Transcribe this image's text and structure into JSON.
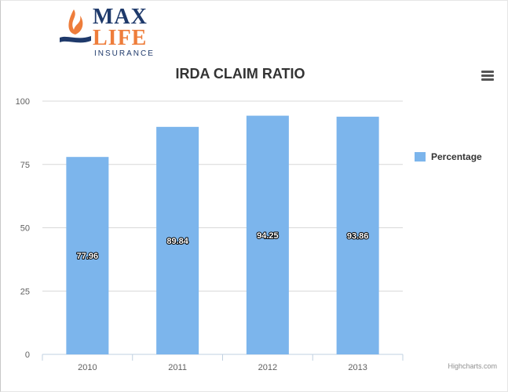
{
  "logo": {
    "line1": "MAX",
    "line2": "LIFE",
    "line3": "INSURANCE"
  },
  "credits": "Highcharts.com",
  "colors": {
    "bar": "#7cb5ec",
    "grid": "#d8d8d8",
    "axis": "#c0d0e0",
    "logo_blue": "#1f3a6b",
    "logo_orange": "#ee7d3b"
  },
  "chart_data": {
    "type": "bar",
    "title": "IRDA CLAIM RATIO",
    "xlabel": "",
    "ylabel": "",
    "categories": [
      "2010",
      "2011",
      "2012",
      "2013"
    ],
    "series": [
      {
        "name": "Percentage",
        "values": [
          77.96,
          89.84,
          94.25,
          93.86
        ],
        "data_labels": [
          "77.96",
          "89.84",
          "94.25",
          "93.86"
        ]
      }
    ],
    "ylim": [
      0,
      100
    ],
    "yticks": [
      "0",
      "25",
      "50",
      "75",
      "100"
    ],
    "grid": true,
    "legend_position": "right"
  }
}
